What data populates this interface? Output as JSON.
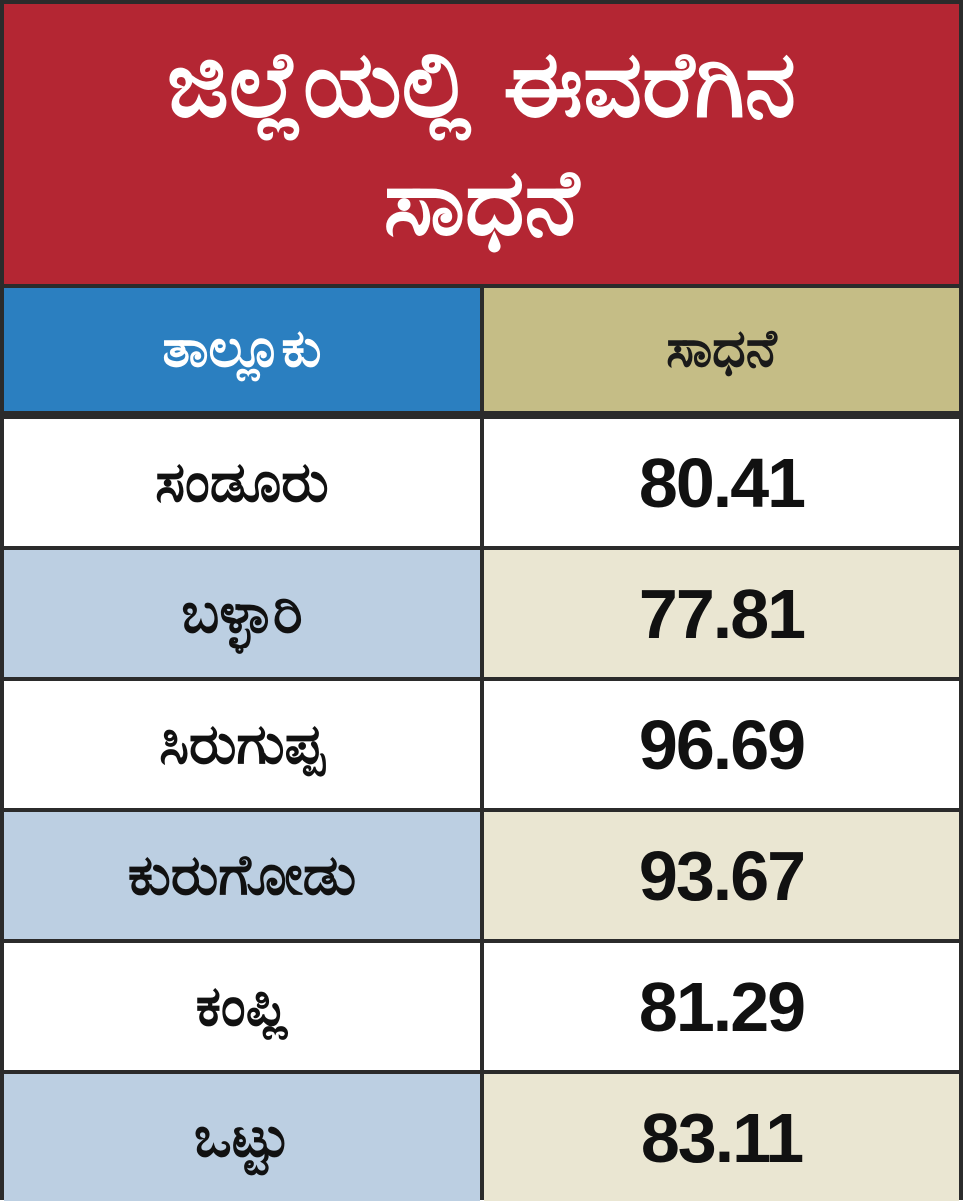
{
  "title": {
    "line1": "ಜಿಲ್ಲೆಯಲ್ಲಿ ಈವರೆಗಿನ",
    "line2": "ಸಾಧನೆ"
  },
  "table": {
    "headers": {
      "taluk": "ತಾಲ್ಲೂಕು",
      "achievement": "ಸಾಧನೆ"
    },
    "rows": [
      {
        "taluk": "ಸಂಡೂರು",
        "value": "80.41"
      },
      {
        "taluk": "ಬಳ್ಳಾರಿ",
        "value": "77.81"
      },
      {
        "taluk": "ಸಿರುಗುಪ್ಪ",
        "value": "96.69"
      },
      {
        "taluk": "ಕುರುಗೋಡು",
        "value": "93.67"
      },
      {
        "taluk": "ಕಂಪ್ಲಿ",
        "value": "81.29"
      },
      {
        "taluk": "ಒಟ್ಟು",
        "value": "83.11"
      }
    ]
  },
  "colors": {
    "title_background": "#b42633",
    "taluk_header_background": "#2b7fc0",
    "achievement_header_background": "#c5bd86",
    "alt_row_taluk_background": "#bccfe2",
    "alt_row_value_background": "#eae6d2",
    "border": "#2b2b2b"
  }
}
